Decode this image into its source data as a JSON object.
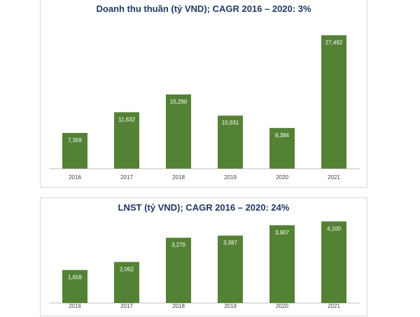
{
  "chart_data": [
    {
      "type": "bar",
      "title": "Doanh thu thuần (tỷ VND); CAGR 2016 – 2020: 3%",
      "categories": [
        "2016",
        "2017",
        "2018",
        "2019",
        "2020",
        "2021"
      ],
      "values": [
        7359,
        11632,
        15290,
        10931,
        8384,
        27492
      ],
      "value_labels": [
        "7,359",
        "11,632",
        "15,290",
        "10,931",
        "8,384",
        "27,492"
      ],
      "xlabel": "",
      "ylabel": "",
      "ylim": [
        0,
        30000
      ],
      "grid": false,
      "color": "#548235"
    },
    {
      "type": "bar",
      "title": "LNST (tỷ VND); CAGR 2016 – 2020: 24%",
      "categories": [
        "2016",
        "2017",
        "2018",
        "2019",
        "2020",
        "2021"
      ],
      "values": [
        1659,
        2062,
        3279,
        3387,
        3907,
        4100
      ],
      "value_labels": [
        "1,659",
        "2,062",
        "3,279",
        "3,387",
        "3,907",
        "4,100"
      ],
      "xlabel": "",
      "ylabel": "",
      "ylim": [
        0,
        4500
      ],
      "grid": false,
      "color": "#548235"
    }
  ]
}
